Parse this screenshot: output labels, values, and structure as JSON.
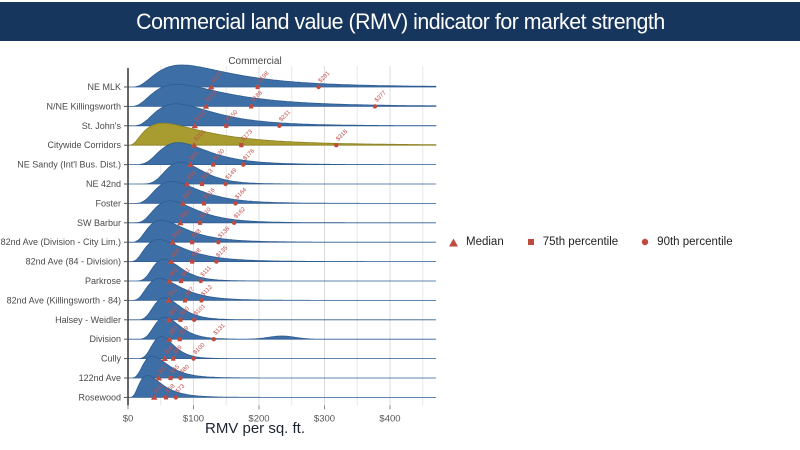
{
  "header": {
    "title": "Commercial land value (RMV) indicator for market strength",
    "bg_color": "#17365d",
    "text_color": "#ffffff"
  },
  "chart_data": {
    "type": "area",
    "subtype": "ridgeline",
    "title": "Commercial",
    "xlabel": "RMV per sq. ft.",
    "x_ticks": [
      "$0",
      "$100",
      "$200",
      "$300",
      "$400"
    ],
    "x_tick_values": [
      0,
      100,
      200,
      300,
      400
    ],
    "xlim": [
      0,
      470
    ],
    "grid": "vertical every $50, light gray",
    "legend_position": "right-middle",
    "series_color": "#3d6fa6",
    "series_stroke": "#2e5c91",
    "highlight_color": "#a89b2f",
    "highlight_stroke": "#8c8224",
    "marker_color": "#bf4a3f",
    "label_color": "#c0504d",
    "legend": [
      {
        "marker": "triangle",
        "label": "Median"
      },
      {
        "marker": "square",
        "label": "75th percentile"
      },
      {
        "marker": "circle",
        "label": "90th percentile"
      }
    ],
    "rows": [
      {
        "label": "NE MLK",
        "median": 127,
        "p75": 198,
        "p90": 291
      },
      {
        "label": "N/NE Killingsworth",
        "median": 119,
        "p75": 188,
        "p90": 377
      },
      {
        "label": "St. John's",
        "median": 102,
        "p75": 150,
        "p90": 231
      },
      {
        "label": "Citywide Corridors",
        "median": 101,
        "p75": 173,
        "p90": 318,
        "highlight": true
      },
      {
        "label": "NE Sandy (Int'l Bus. Dist.)",
        "median": 95,
        "p75": 130,
        "p90": 176
      },
      {
        "label": "NE 42nd",
        "median": 90,
        "p75": 113,
        "p90": 149
      },
      {
        "label": "Foster",
        "median": 84,
        "p75": 116,
        "p90": 164
      },
      {
        "label": "SW Barbur",
        "median": 80,
        "p75": 110,
        "p90": 162
      },
      {
        "label": "82nd Ave (Division - City Lim.)",
        "median": 68,
        "p75": 98,
        "p90": 138
      },
      {
        "label": "82nd Ave (84 - Division)",
        "median": 66,
        "p75": 98,
        "p90": 135
      },
      {
        "label": "Parkrose",
        "median": 63,
        "p75": 81,
        "p90": 111
      },
      {
        "label": "82nd Ave (Killingsworth - 84)",
        "median": 62,
        "p75": 87,
        "p90": 112
      },
      {
        "label": "Halsey - Weidler",
        "median": 63,
        "p75": 80,
        "p90": 101
      },
      {
        "label": "Division",
        "median": 63,
        "p75": 79,
        "p90": 131,
        "tail_bump": 235
      },
      {
        "label": "Cully",
        "median": 56,
        "p75": 69,
        "p90": 100
      },
      {
        "label": "122nd Ave",
        "median": 47,
        "p75": 65,
        "p90": 80
      },
      {
        "label": "Rosewood",
        "median": 40,
        "p75": 58,
        "p90": 73
      }
    ]
  }
}
